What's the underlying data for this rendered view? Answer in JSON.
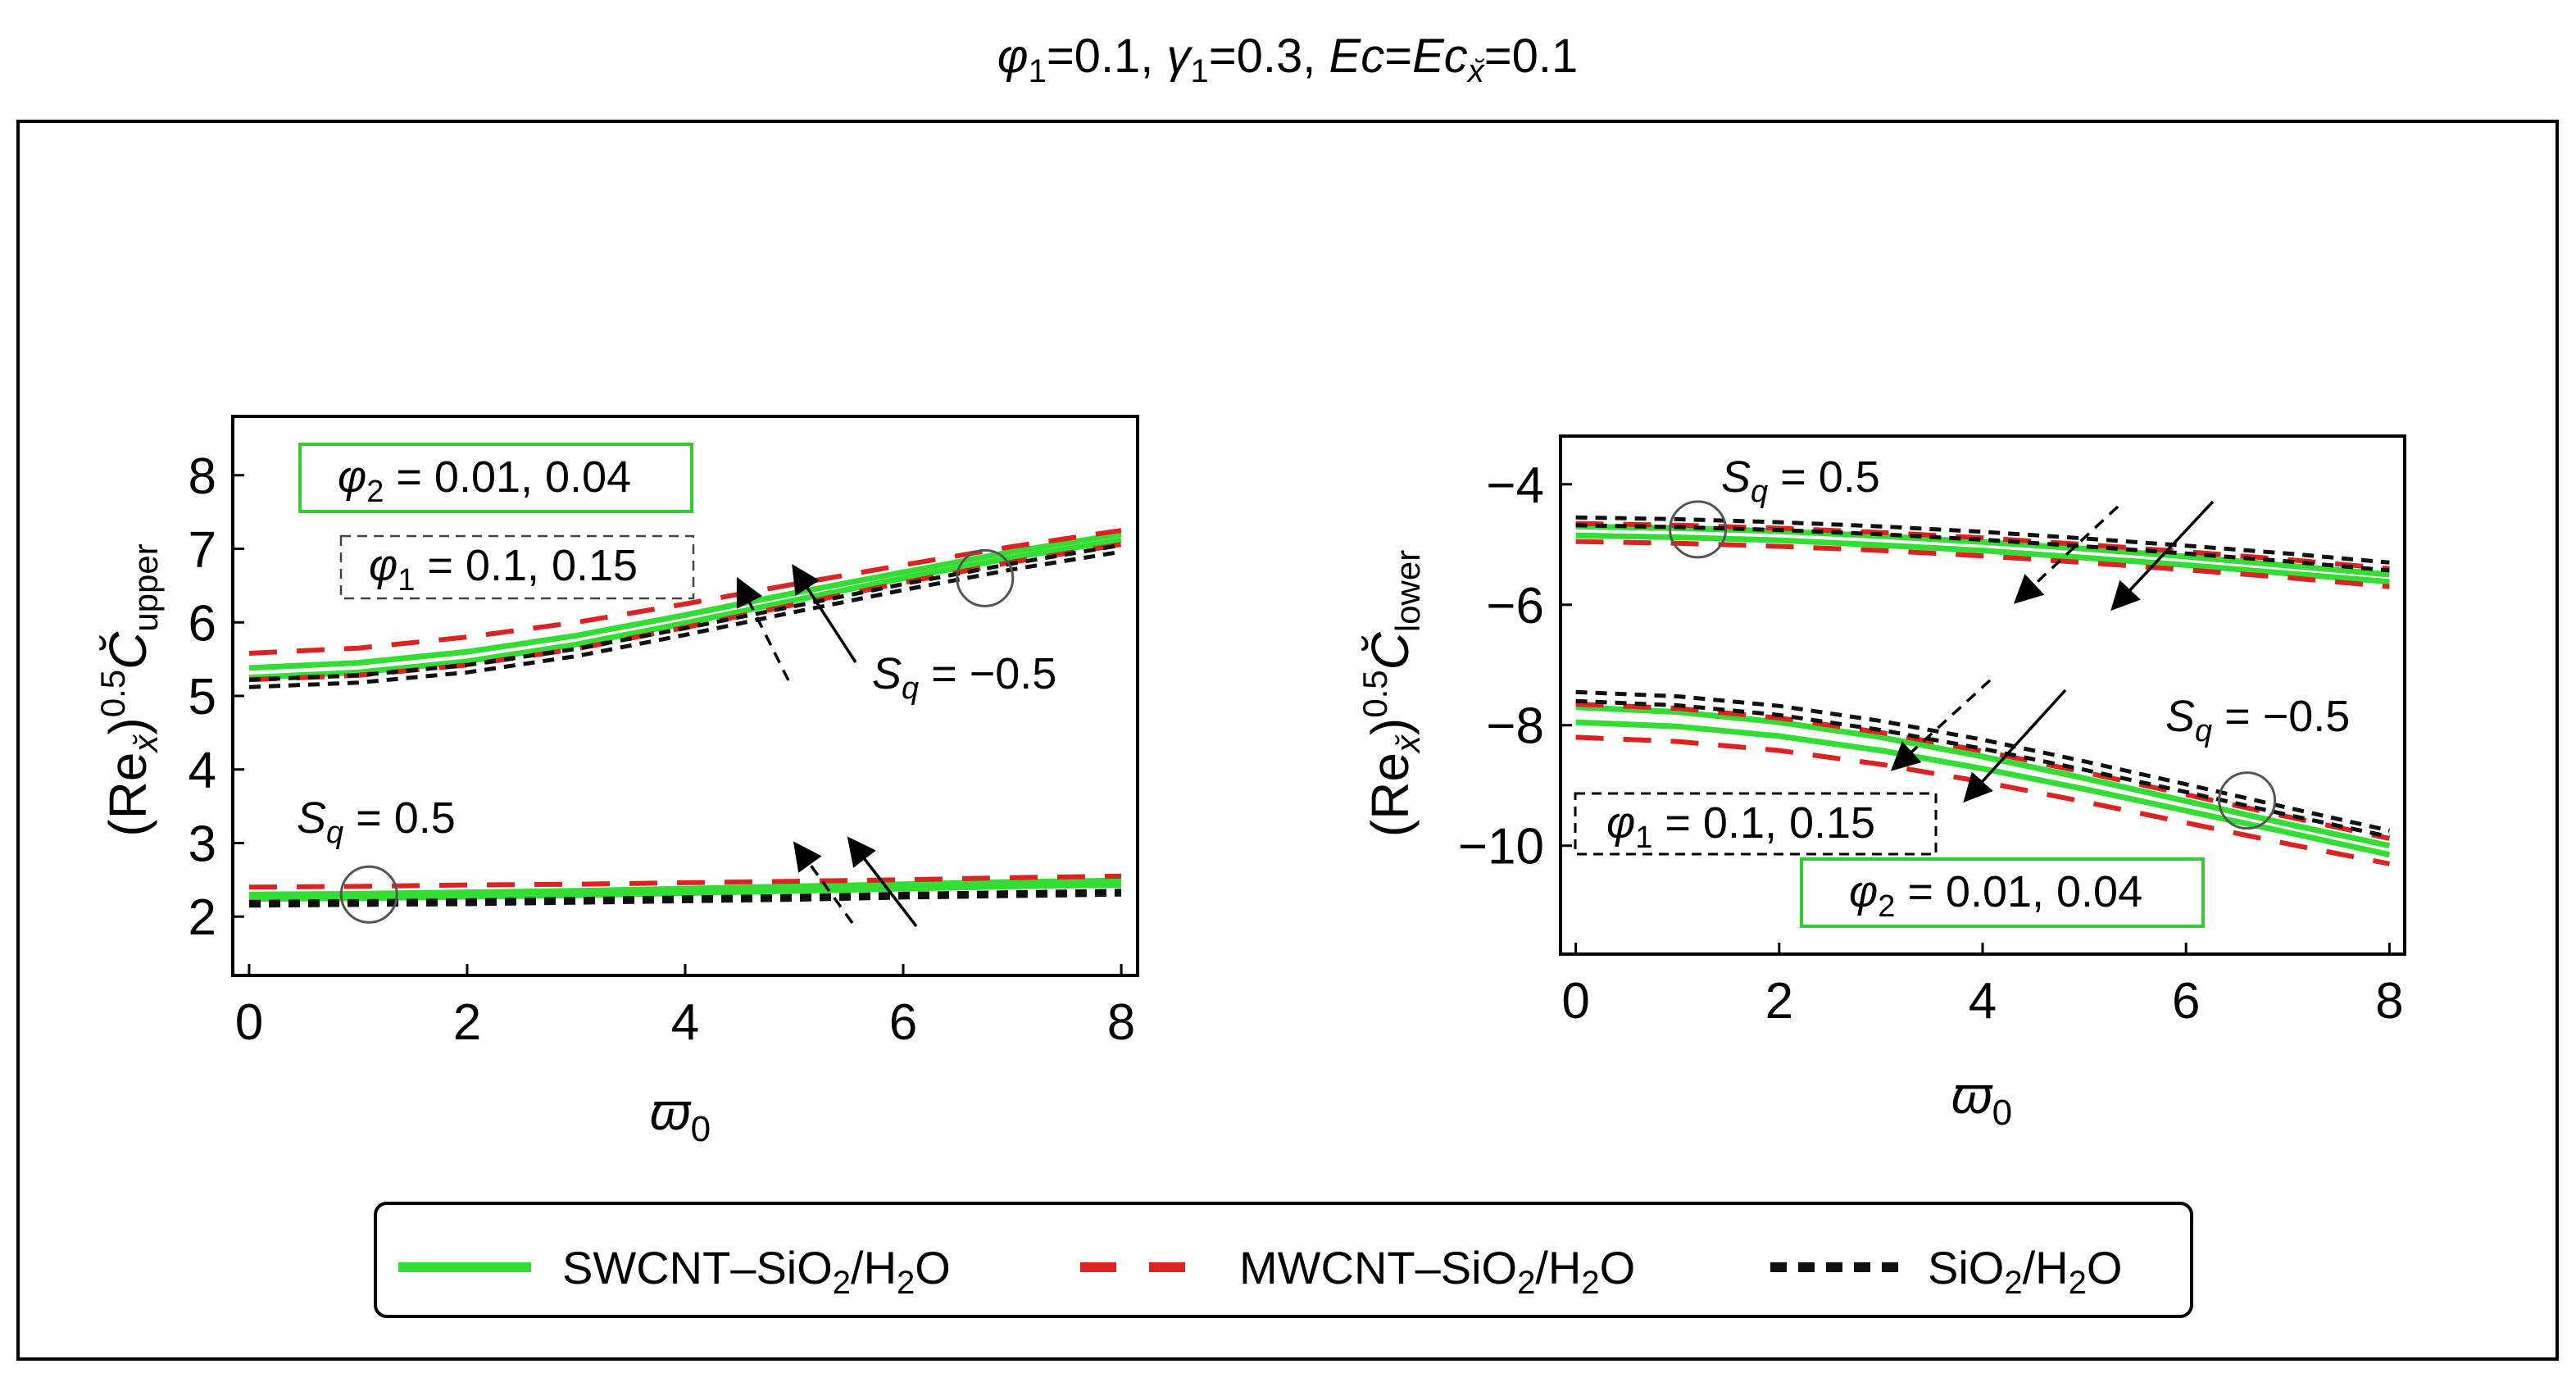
{
  "colors": {
    "swcnt": "#33dd33",
    "mwcnt": "#dd2222",
    "sio2": "#111111",
    "frame": "#000000",
    "box_green": "#33cc33"
  },
  "header": {
    "phi1": "φ",
    "phi1_sub": "1",
    "phi1_val": "=0.1, ",
    "gamma": "γ",
    "gamma_sub": "1",
    "gamma_val": "=0.3, ",
    "ec": "Ec",
    "eq": "=",
    "ecx": "Ec",
    "ecx_sub": "x̆",
    "ec_val": "=0.1"
  },
  "legend": {
    "items": [
      {
        "key": "swcnt",
        "label": "SWCNT–SiO",
        "sub1": "2",
        "mid": "/H",
        "sub2": "2",
        "end": "O"
      },
      {
        "key": "mwcnt",
        "label": "MWCNT–SiO",
        "sub1": "2",
        "mid": "/H",
        "sub2": "2",
        "end": "O"
      },
      {
        "key": "sio2",
        "label": "SiO",
        "sub1": "2",
        "mid": "/H",
        "sub2": "2",
        "end": "O"
      }
    ]
  },
  "chart_data": [
    {
      "type": "line",
      "title": "",
      "xlabel": "ϖ",
      "xlabel_sub": "0",
      "ylabel": {
        "pre": "(Re",
        "sub": "x̆",
        "post": ")",
        "sup": "0.5",
        "c": "C̆",
        "csub": "upper"
      },
      "xlim": [
        -0.15,
        8.15
      ],
      "ylim": [
        1.2,
        8.8
      ],
      "xticks": [
        0,
        2,
        4,
        6,
        8
      ],
      "yticks": [
        2,
        3,
        4,
        5,
        6,
        7,
        8
      ],
      "x": [
        0,
        1,
        2,
        3,
        4,
        5,
        6,
        7,
        8
      ],
      "series": [
        {
          "name": "SWCNT-SiO2/H2O",
          "style": "swcnt",
          "group": "Sq=-0.5, φ2=0.01",
          "values": [
            5.25,
            5.32,
            5.47,
            5.7,
            5.99,
            6.3,
            6.6,
            6.88,
            7.12
          ]
        },
        {
          "name": "SWCNT-SiO2/H2O",
          "style": "swcnt",
          "group": "Sq=-0.5, φ2=0.04",
          "values": [
            5.38,
            5.45,
            5.6,
            5.82,
            6.1,
            6.4,
            6.68,
            6.96,
            7.2
          ]
        },
        {
          "name": "MWCNT-SiO2/H2O",
          "style": "mwcnt",
          "group": "Sq=-0.5, φ1=0.1",
          "values": [
            5.58,
            5.65,
            5.8,
            6.0,
            6.25,
            6.52,
            6.78,
            7.03,
            7.25
          ]
        },
        {
          "name": "MWCNT-SiO2/H2O",
          "style": "mwcnt",
          "group": "Sq=-0.5, φ1=0.15",
          "values": [
            5.22,
            5.28,
            5.42,
            5.64,
            5.93,
            6.24,
            6.54,
            6.82,
            7.06
          ]
        },
        {
          "name": "SiO2/H2O",
          "style": "sio2",
          "group": "Sq=-0.5, φ1=0.1",
          "values": [
            5.22,
            5.28,
            5.42,
            5.64,
            5.92,
            6.22,
            6.52,
            6.8,
            7.05
          ]
        },
        {
          "name": "SiO2/H2O",
          "style": "sio2",
          "group": "Sq=-0.5, φ1=0.15",
          "values": [
            5.12,
            5.18,
            5.32,
            5.54,
            5.83,
            6.14,
            6.44,
            6.72,
            6.96
          ]
        },
        {
          "name": "SWCNT-SiO2/H2O",
          "style": "swcnt",
          "group": "Sq=0.5, φ2=0.01",
          "values": [
            2.24,
            2.25,
            2.27,
            2.29,
            2.32,
            2.35,
            2.38,
            2.41,
            2.43
          ]
        },
        {
          "name": "SWCNT-SiO2/H2O",
          "style": "swcnt",
          "group": "Sq=0.5, φ2=0.04",
          "values": [
            2.3,
            2.31,
            2.33,
            2.35,
            2.38,
            2.41,
            2.44,
            2.47,
            2.49
          ]
        },
        {
          "name": "MWCNT-SiO2/H2O",
          "style": "mwcnt",
          "group": "Sq=0.5",
          "values": [
            2.4,
            2.41,
            2.43,
            2.44,
            2.46,
            2.48,
            2.5,
            2.53,
            2.55
          ]
        },
        {
          "name": "SiO2/H2O",
          "style": "sio2",
          "group": "Sq=0.5, φ1=0.1",
          "values": [
            2.2,
            2.21,
            2.22,
            2.24,
            2.26,
            2.28,
            2.31,
            2.33,
            2.35
          ]
        },
        {
          "name": "SiO2/H2O",
          "style": "sio2",
          "group": "Sq=0.5, φ1=0.15",
          "values": [
            2.15,
            2.16,
            2.17,
            2.19,
            2.21,
            2.23,
            2.26,
            2.28,
            2.3
          ]
        }
      ],
      "annotations": [
        {
          "kind": "box_green",
          "text": "φ",
          "sub": "2",
          "rest": " = 0.01, 0.04"
        },
        {
          "kind": "box_dashed",
          "text": "φ",
          "sub": "1",
          "rest": " = 0.1, 0.15"
        },
        {
          "kind": "label",
          "text": "S",
          "sub": "q",
          "rest": " = −0.5"
        },
        {
          "kind": "label",
          "text": "S",
          "sub": "q",
          "rest": " = 0.5"
        }
      ],
      "circles": [
        {
          "x": 6.75,
          "y": 6.6
        },
        {
          "x": 1.1,
          "y": 2.3
        }
      ]
    },
    {
      "type": "line",
      "title": "",
      "xlabel": "ϖ",
      "xlabel_sub": "0",
      "ylabel": {
        "pre": "(Re",
        "sub": "x̆",
        "post": ")",
        "sup": "0.5",
        "c": "C̆",
        "csub": "lower"
      },
      "xlim": [
        -0.15,
        8.15
      ],
      "ylim": [
        -11.8,
        -3.2
      ],
      "xticks": [
        0,
        2,
        4,
        6,
        8
      ],
      "yticks": [
        -4,
        -6,
        -8,
        -10
      ],
      "x": [
        0,
        1,
        2,
        3,
        4,
        5,
        6,
        7,
        8
      ],
      "series": [
        {
          "name": "SWCNT-SiO2/H2O",
          "style": "swcnt",
          "group": "Sq=0.5, φ2=0.01",
          "values": [
            -4.7,
            -4.73,
            -4.78,
            -4.86,
            -4.96,
            -5.07,
            -5.2,
            -5.35,
            -5.5
          ]
        },
        {
          "name": "SWCNT-SiO2/H2O",
          "style": "swcnt",
          "group": "Sq=0.5, φ2=0.04",
          "values": [
            -4.85,
            -4.88,
            -4.93,
            -5.01,
            -5.1,
            -5.22,
            -5.34,
            -5.48,
            -5.62
          ]
        },
        {
          "name": "MWCNT-SiO2/H2O",
          "style": "mwcnt",
          "group": "Sq=0.5, φ1=0.1",
          "values": [
            -4.95,
            -4.98,
            -5.03,
            -5.1,
            -5.19,
            -5.3,
            -5.42,
            -5.55,
            -5.7
          ]
        },
        {
          "name": "MWCNT-SiO2/H2O",
          "style": "mwcnt",
          "group": "Sq=0.5, φ1=0.15",
          "values": [
            -4.65,
            -4.68,
            -4.73,
            -4.8,
            -4.89,
            -5.0,
            -5.12,
            -5.25,
            -5.4
          ]
        },
        {
          "name": "SiO2/H2O",
          "style": "sio2",
          "group": "Sq=0.5, φ1=0.1",
          "values": [
            -4.55,
            -4.58,
            -4.63,
            -4.7,
            -4.79,
            -4.9,
            -5.02,
            -5.15,
            -5.3
          ]
        },
        {
          "name": "SiO2/H2O",
          "style": "sio2",
          "group": "Sq=0.5, φ1=0.15",
          "values": [
            -4.68,
            -4.71,
            -4.76,
            -4.83,
            -4.92,
            -5.03,
            -5.15,
            -5.28,
            -5.43
          ]
        },
        {
          "name": "SWCNT-SiO2/H2O",
          "style": "swcnt",
          "group": "Sq=-0.5, φ2=0.01",
          "values": [
            -7.7,
            -7.78,
            -7.95,
            -8.2,
            -8.52,
            -8.88,
            -9.26,
            -9.64,
            -10.0
          ]
        },
        {
          "name": "SWCNT-SiO2/H2O",
          "style": "swcnt",
          "group": "Sq=-0.5, φ2=0.04",
          "values": [
            -7.95,
            -8.02,
            -8.18,
            -8.42,
            -8.72,
            -9.06,
            -9.42,
            -9.78,
            -10.15
          ]
        },
        {
          "name": "MWCNT-SiO2/H2O",
          "style": "mwcnt",
          "group": "Sq=-0.5, φ1=0.1",
          "values": [
            -8.2,
            -8.27,
            -8.42,
            -8.65,
            -8.94,
            -9.27,
            -9.62,
            -9.97,
            -10.3
          ]
        },
        {
          "name": "MWCNT-SiO2/H2O",
          "style": "mwcnt",
          "group": "Sq=-0.5, φ1=0.15",
          "values": [
            -7.65,
            -7.72,
            -7.88,
            -8.12,
            -8.43,
            -8.78,
            -9.15,
            -9.52,
            -9.88
          ]
        },
        {
          "name": "SiO2/H2O",
          "style": "sio2",
          "group": "Sq=-0.5, φ1=0.1",
          "values": [
            -7.45,
            -7.52,
            -7.68,
            -7.93,
            -8.24,
            -8.6,
            -8.98,
            -9.37,
            -9.75
          ]
        },
        {
          "name": "SiO2/H2O",
          "style": "sio2",
          "group": "Sq=-0.5, φ1=0.15",
          "values": [
            -7.6,
            -7.67,
            -7.83,
            -8.08,
            -8.39,
            -8.74,
            -9.11,
            -9.49,
            -9.85
          ]
        }
      ],
      "annotations": [
        {
          "kind": "label",
          "text": "S",
          "sub": "q",
          "rest": " = 0.5"
        },
        {
          "kind": "label",
          "text": "S",
          "sub": "q",
          "rest": " = −0.5"
        },
        {
          "kind": "box_dashed",
          "text": "φ",
          "sub": "1",
          "rest": " = 0.1, 0.15"
        },
        {
          "kind": "box_green",
          "text": "φ",
          "sub": "2",
          "rest": " = 0.01, 0.04"
        }
      ],
      "circles": [
        {
          "x": 1.2,
          "y": -4.75
        },
        {
          "x": 6.6,
          "y": -9.25
        }
      ]
    }
  ]
}
